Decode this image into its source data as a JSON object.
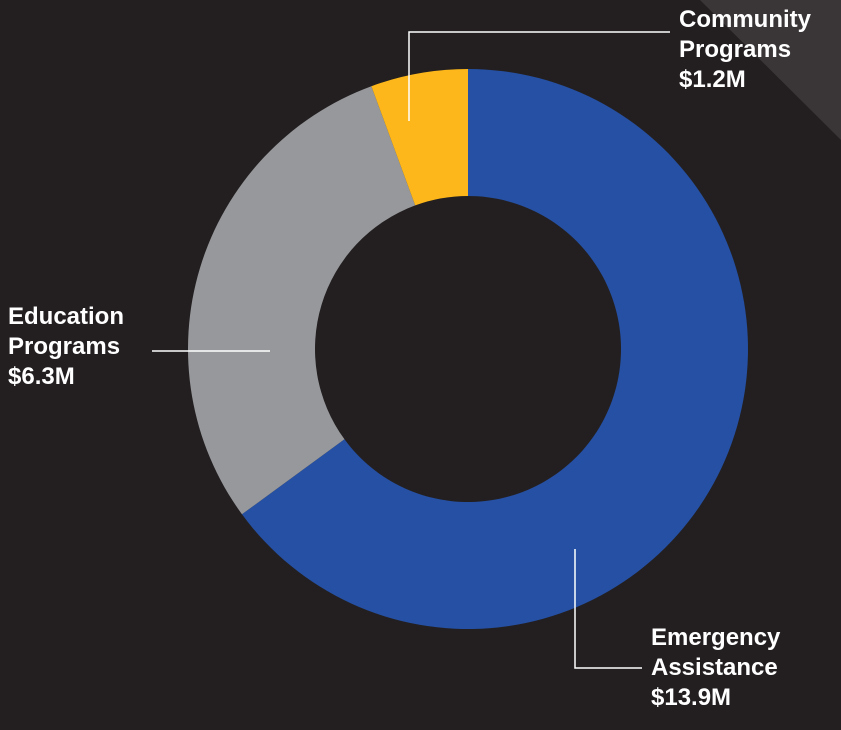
{
  "chart_data": {
    "type": "pie",
    "variant": "donut",
    "series": [
      {
        "name": "",
        "values": [
          {
            "label_lines": [
              "Emergency",
              "Assistance"
            ],
            "value_label": "$13.9M",
            "value": 13.9,
            "color": "#2550a3"
          },
          {
            "label_lines": [
              "Education",
              "Programs"
            ],
            "value_label": "$6.3M",
            "value": 6.3,
            "color": "#97989b"
          },
          {
            "label_lines": [
              "Community",
              "Programs"
            ],
            "value_label": "$1.2M",
            "value": 1.2,
            "color": "#fdb71a"
          }
        ]
      }
    ],
    "start_angle": "12 o'clock",
    "direction": "clockwise",
    "unit": "$M",
    "legend": "none (callout labels)"
  },
  "colors": {
    "background": "#231f20",
    "label_text": "#ffffff",
    "leader_line": "#ffffff"
  }
}
